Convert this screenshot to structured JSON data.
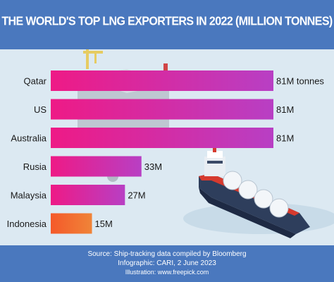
{
  "header": {
    "title": "THE WORLD'S TOP LNG EXPORTERS IN 2022 (MILLION TONNES)"
  },
  "chart_data": {
    "type": "bar",
    "orientation": "horizontal",
    "title": "THE WORLD'S TOP LNG EXPORTERS IN 2022 (MILLION TONNES)",
    "categories": [
      "Qatar",
      "US",
      "Australia",
      "Rusia",
      "Malaysia",
      "Indonesia"
    ],
    "values": [
      81,
      81,
      81,
      33,
      27,
      15
    ],
    "value_labels": [
      "81M tonnes",
      "81M",
      "81M",
      "33M",
      "27M",
      "15M"
    ],
    "unit": "million tonnes",
    "xlim": [
      0,
      81
    ],
    "grid": false,
    "legend": "none",
    "bar_colors": [
      "#e91e8c",
      "#e91e8c",
      "#e91e8c",
      "#e32a95",
      "#d13ab0",
      "#f26a2e"
    ]
  },
  "footer": {
    "source": "Source: Ship-tracking data compiled by Bloomberg",
    "infographic": "Infographic: CARI, 2 June 2023",
    "illustration": "Illustration: www.freepick.com"
  }
}
